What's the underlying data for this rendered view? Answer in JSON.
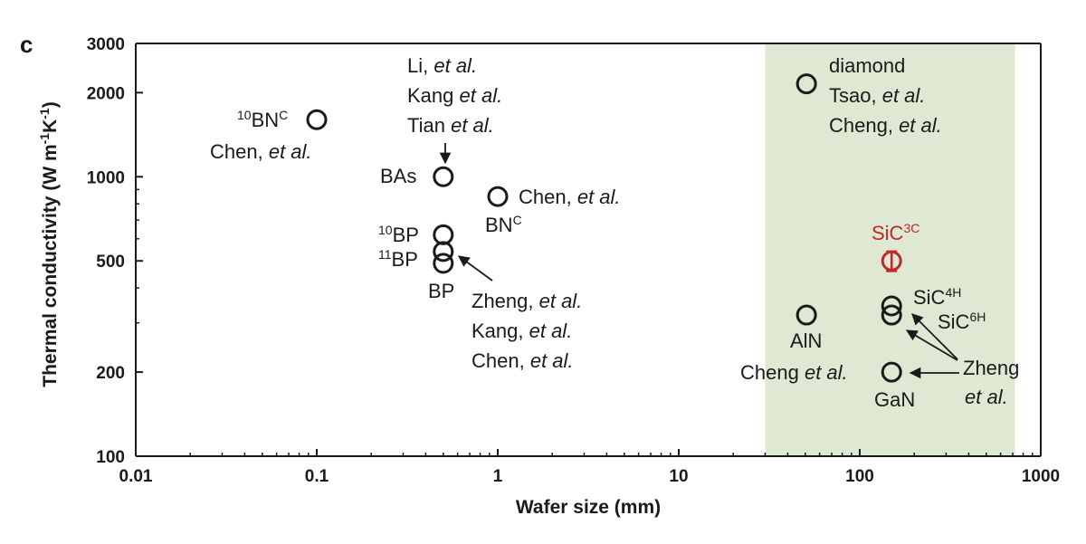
{
  "panel_label": "c",
  "chart_data": {
    "type": "scatter",
    "xlabel": "Wafer size (mm)",
    "ylabel_parts": {
      "main": "Thermal conductivity (W m",
      "e1": "-1",
      "mid": "K",
      "e2": "-1",
      "end": ")"
    },
    "x_scale": "log",
    "y_scale": "log",
    "xlim": [
      0.01,
      1000
    ],
    "ylim": [
      100,
      3000
    ],
    "x_ticks": [
      0.01,
      0.1,
      1,
      10,
      100,
      1000
    ],
    "x_tick_labels": [
      "0.01",
      "0.1",
      "1",
      "10",
      "100",
      "1000"
    ],
    "y_ticks": [
      100,
      200,
      500,
      1000,
      2000,
      3000
    ],
    "y_tick_labels": [
      "100",
      "200",
      "500",
      "1000",
      "2000",
      "3000"
    ],
    "shaded_region": {
      "x_from": 30,
      "x_to": 720,
      "color": "#dfe8d2"
    },
    "grid": false,
    "colors": {
      "marker": "#1a1a1a",
      "highlight": "#c0282d"
    },
    "points": [
      {
        "name": "10BNC",
        "x": 0.1,
        "y": 1600
      },
      {
        "name": "BAs",
        "x": 0.5,
        "y": 1000
      },
      {
        "name": "BNC",
        "x": 1.0,
        "y": 850
      },
      {
        "name": "10BP",
        "x": 0.5,
        "y": 620
      },
      {
        "name": "11BP",
        "x": 0.5,
        "y": 540
      },
      {
        "name": "BP",
        "x": 0.5,
        "y": 490
      },
      {
        "name": "diamond",
        "x": 50.8,
        "y": 2150
      },
      {
        "name": "AlN",
        "x": 50.8,
        "y": 320
      },
      {
        "name": "SiC3C",
        "x": 150,
        "y": 500,
        "yerr": 40,
        "highlight": true
      },
      {
        "name": "SiC4H",
        "x": 150,
        "y": 345
      },
      {
        "name": "SiC6H",
        "x": 150,
        "y": 320
      },
      {
        "name": "GaN",
        "x": 150,
        "y": 200
      }
    ],
    "annotations": {
      "bn10": {
        "sup": "10",
        "main": "BN",
        "sup2": "C"
      },
      "bn10_ref": {
        "a": "Chen, ",
        "b": "et al."
      },
      "li": {
        "a": "Li, ",
        "b": "et al."
      },
      "kang1": {
        "a": "Kang ",
        "b": "et al."
      },
      "tian": {
        "a": "Tian ",
        "b": "et al."
      },
      "bas": "BAs",
      "bnc_ref": {
        "a": "Chen, ",
        "b": "et al."
      },
      "bnc": {
        "main": "BN",
        "sup": "C"
      },
      "bp10": {
        "sup": "10",
        "main": "BP"
      },
      "bp11": {
        "sup": "11",
        "main": "BP"
      },
      "bp": "BP",
      "zheng1": {
        "a": "Zheng, ",
        "b": "et al."
      },
      "kang2": {
        "a": "Kang, ",
        "b": "et al."
      },
      "chen3": {
        "a": "Chen, ",
        "b": "et al."
      },
      "diamond": "diamond",
      "tsao": {
        "a": "Tsao, ",
        "b": "et al."
      },
      "cheng1": {
        "a": "Cheng, ",
        "b": "et al."
      },
      "sic3c": {
        "main": "SiC",
        "sup": "3C"
      },
      "sic4h": {
        "main": "SiC",
        "sup": "4H"
      },
      "sic6h": {
        "main": "SiC",
        "sup": "6H"
      },
      "aln": "AlN",
      "cheng2": {
        "a": "Cheng ",
        "b": "et al."
      },
      "gan": "GaN",
      "zheng2": "Zheng",
      "zheng2b": "et al."
    }
  }
}
